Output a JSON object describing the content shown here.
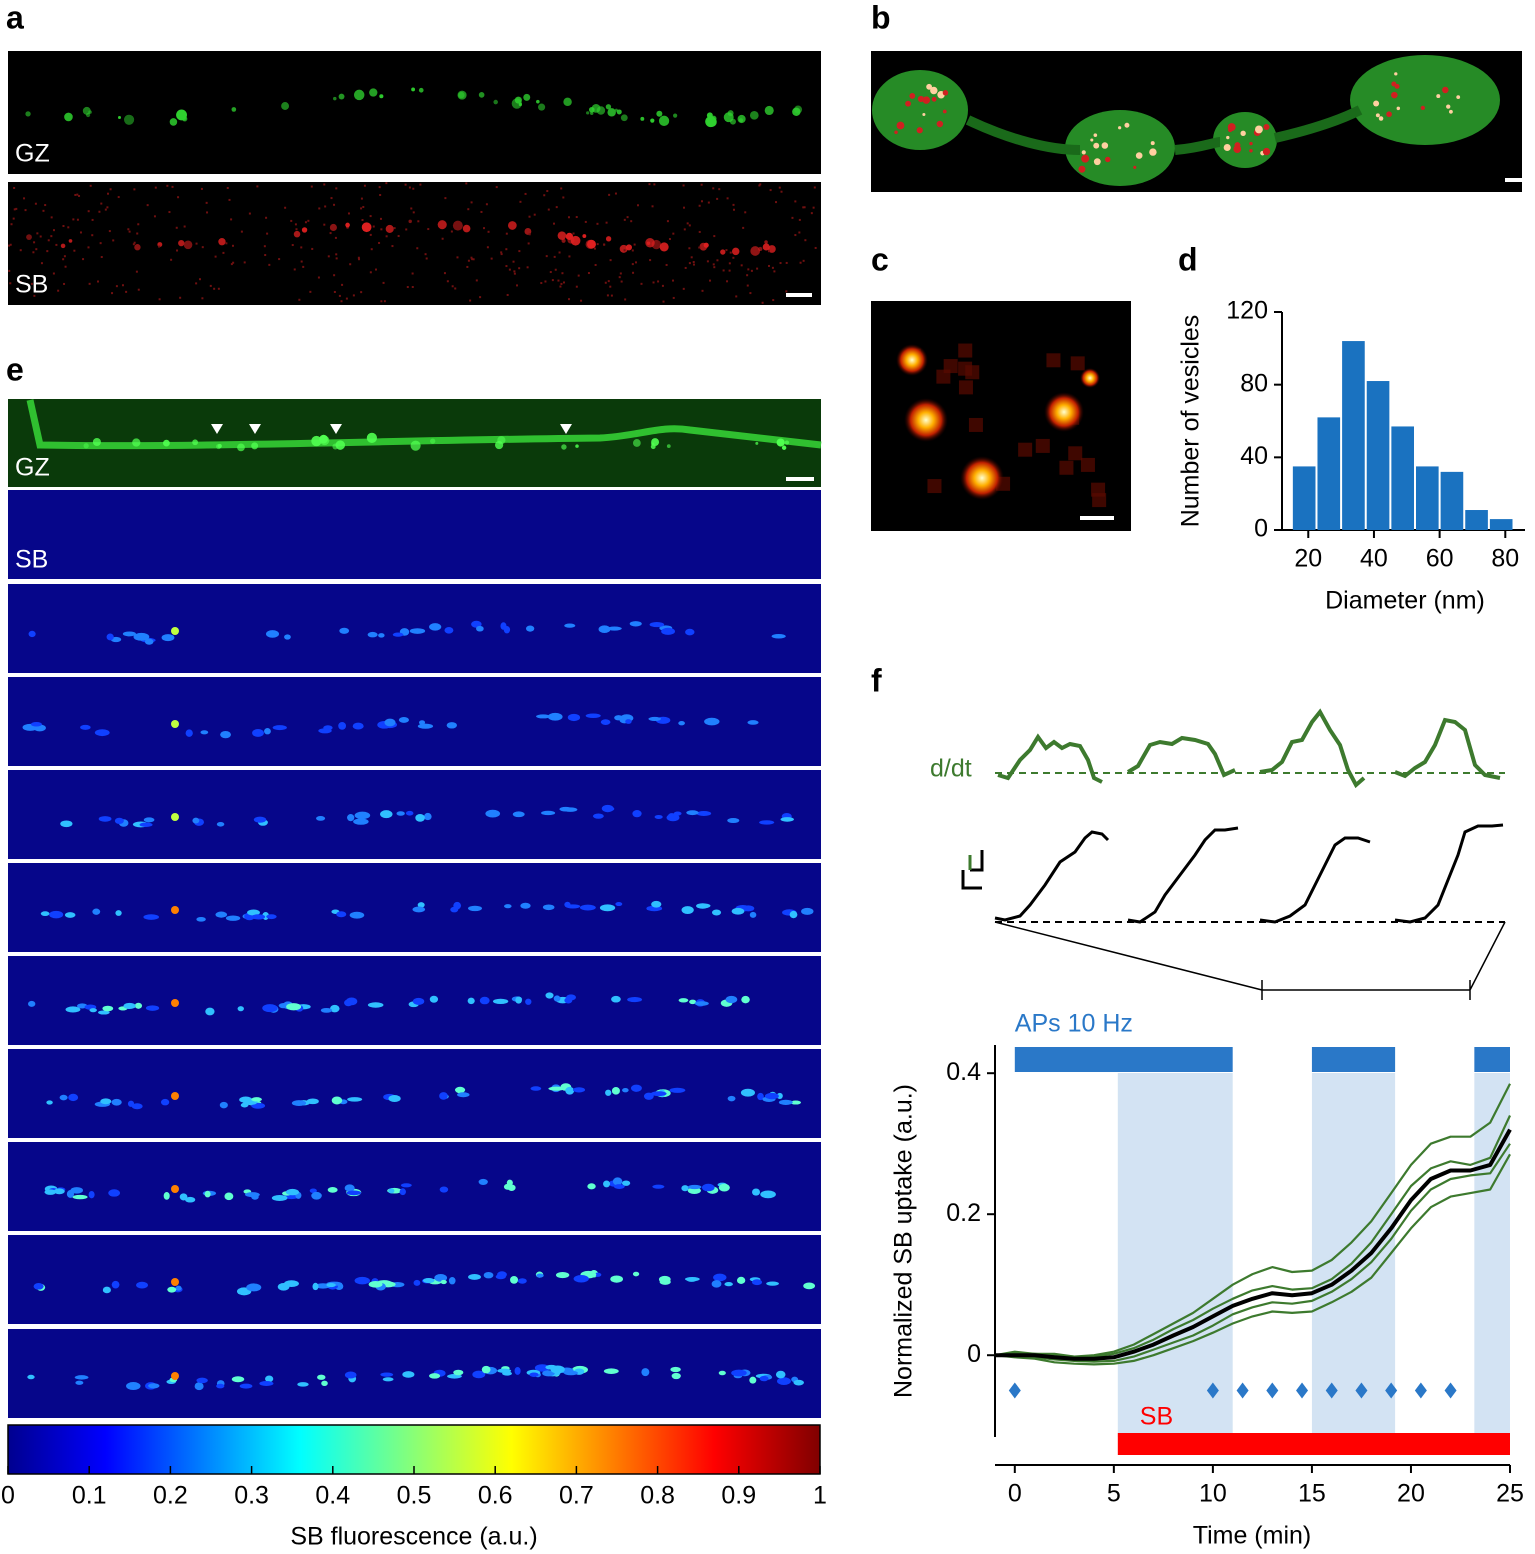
{
  "panel_labels": [
    "a",
    "b",
    "c",
    "d",
    "e",
    "f"
  ],
  "image_labels": {
    "a_green": "GZ",
    "a_red": "SB",
    "e_green": "GZ",
    "e_sb": "SB"
  },
  "inset_label": "d/dt",
  "colorbar": {
    "label": "SB fluorescence (a.u.)",
    "lim": [
      0,
      1
    ],
    "ticks": [
      0,
      0.1,
      0.2,
      0.3,
      0.4,
      0.5,
      0.6,
      0.7,
      0.8,
      0.9,
      1
    ]
  },
  "chart_data": [
    {
      "type": "histogram",
      "xlabel": "Diameter (nm)",
      "ylabel": "Number of vesicles",
      "bins": [
        15,
        22.5,
        30,
        37.5,
        45,
        52.5,
        60,
        67.5,
        75,
        82.5
      ],
      "values": [
        35,
        62,
        104,
        82,
        57,
        35,
        32,
        11,
        6
      ],
      "color": "#1a72c0",
      "xlim": [
        12,
        86
      ],
      "ylim": [
        0,
        120
      ],
      "xticks": [
        20,
        40,
        60,
        80
      ],
      "yticks": [
        0,
        40,
        80,
        120
      ]
    },
    {
      "type": "line",
      "xlabel": "Time (min)",
      "ylabel": "Normalized SB uptake (a.u.)",
      "x": [
        -1,
        0,
        1,
        2,
        3,
        4,
        5,
        6,
        7,
        8,
        9,
        10,
        11,
        12,
        13,
        14,
        15,
        16,
        17,
        18,
        19,
        20,
        21,
        22,
        23,
        24,
        25
      ],
      "series": [
        {
          "color": "#3d7a2e",
          "values": [
            0,
            0.003,
            0.002,
            0,
            -0.002,
            0,
            0.005,
            0.015,
            0.03,
            0.045,
            0.06,
            0.08,
            0.1,
            0.115,
            0.125,
            0.118,
            0.12,
            0.135,
            0.16,
            0.19,
            0.23,
            0.27,
            0.3,
            0.31,
            0.31,
            0.33,
            0.385
          ]
        },
        {
          "color": "#3d7a2e",
          "values": [
            0,
            -0.003,
            -0.005,
            -0.01,
            -0.012,
            -0.013,
            -0.012,
            -0.008,
            0,
            0.01,
            0.02,
            0.032,
            0.045,
            0.055,
            0.062,
            0.06,
            0.062,
            0.075,
            0.09,
            0.11,
            0.145,
            0.18,
            0.21,
            0.225,
            0.23,
            0.235,
            0.285
          ]
        },
        {
          "color": "#3d7a2e",
          "values": [
            0,
            0.005,
            0.002,
            0.002,
            -0.002,
            -0.002,
            0.002,
            0.01,
            0.022,
            0.037,
            0.05,
            0.066,
            0.08,
            0.092,
            0.098,
            0.093,
            0.095,
            0.108,
            0.13,
            0.16,
            0.2,
            0.24,
            0.265,
            0.275,
            0.27,
            0.28,
            0.34
          ]
        },
        {
          "color": "#3d7a2e",
          "values": [
            0,
            -0.002,
            -0.003,
            -0.006,
            -0.008,
            -0.009,
            -0.008,
            -0.002,
            0.008,
            0.018,
            0.028,
            0.042,
            0.058,
            0.068,
            0.075,
            0.073,
            0.077,
            0.09,
            0.108,
            0.132,
            0.165,
            0.205,
            0.235,
            0.25,
            0.255,
            0.258,
            0.3
          ]
        },
        {
          "color": "#000000",
          "values": [
            0,
            0,
            0,
            -0.003,
            -0.005,
            -0.005,
            -0.003,
            0.005,
            0.015,
            0.028,
            0.04,
            0.055,
            0.07,
            0.08,
            0.088,
            0.085,
            0.088,
            0.1,
            0.12,
            0.145,
            0.18,
            0.22,
            0.25,
            0.262,
            0.262,
            0.27,
            0.32
          ]
        }
      ],
      "xlim": [
        -1,
        25
      ],
      "ylim": [
        -0.116,
        0.44
      ],
      "xticks": [
        0,
        5,
        10,
        15,
        20,
        25
      ],
      "yticks": [
        0,
        0.2,
        0.4
      ],
      "annotations": {
        "stimulus": {
          "label": "APs 10 Hz",
          "color": "#2a78c8",
          "intervals": [
            [
              0,
              11
            ],
            [
              15,
              19.2
            ],
            [
              23.2,
              25
            ]
          ]
        },
        "shading": {
          "color": "#d3e3f3",
          "intervals": [
            [
              5.2,
              11
            ],
            [
              15,
              19.2
            ],
            [
              23.2,
              25
            ]
          ]
        },
        "application": {
          "label": "SB",
          "color": "#ff0000",
          "intervals": [
            [
              5.2,
              25
            ]
          ]
        },
        "markers": {
          "color": "#2a78c8",
          "y": -0.05,
          "x": [
            0,
            10,
            11.5,
            13,
            14.5,
            16,
            17.5,
            19,
            20.5,
            22
          ]
        }
      }
    }
  ]
}
